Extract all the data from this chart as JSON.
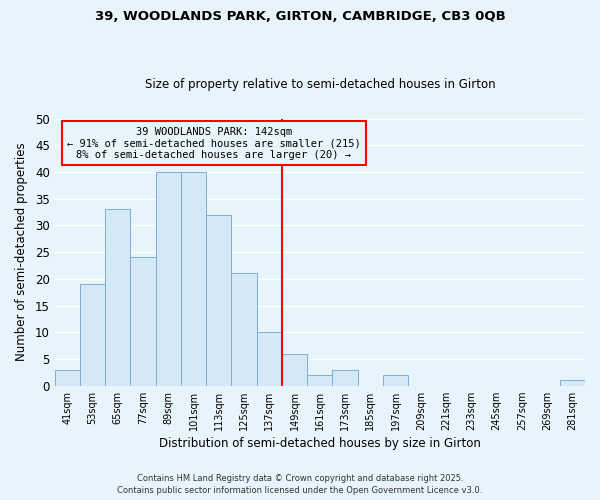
{
  "title1": "39, WOODLANDS PARK, GIRTON, CAMBRIDGE, CB3 0QB",
  "title2": "Size of property relative to semi-detached houses in Girton",
  "xlabel": "Distribution of semi-detached houses by size in Girton",
  "ylabel": "Number of semi-detached properties",
  "bar_labels": [
    "41sqm",
    "53sqm",
    "65sqm",
    "77sqm",
    "89sqm",
    "101sqm",
    "113sqm",
    "125sqm",
    "137sqm",
    "149sqm",
    "161sqm",
    "173sqm",
    "185sqm",
    "197sqm",
    "209sqm",
    "221sqm",
    "233sqm",
    "245sqm",
    "257sqm",
    "269sqm",
    "281sqm"
  ],
  "bar_values": [
    3,
    19,
    33,
    24,
    40,
    40,
    32,
    21,
    10,
    6,
    2,
    3,
    0,
    2,
    0,
    0,
    0,
    0,
    0,
    0,
    1
  ],
  "bar_color": "#d6e8f5",
  "bar_edge_color": "#7ab0d4",
  "ylim": [
    0,
    50
  ],
  "yticks": [
    0,
    5,
    10,
    15,
    20,
    25,
    30,
    35,
    40,
    45,
    50
  ],
  "vline_x": 8.5,
  "vline_color": "red",
  "annotation_title": "39 WOODLANDS PARK: 142sqm",
  "annotation_line1": "← 91% of semi-detached houses are smaller (215)",
  "annotation_line2": "8% of semi-detached houses are larger (20) →",
  "annotation_box_color": "red",
  "footer1": "Contains HM Land Registry data © Crown copyright and database right 2025.",
  "footer2": "Contains public sector information licensed under the Open Government Licence v3.0.",
  "background_color": "#e8f4fc",
  "grid_color": "#cce0f0"
}
